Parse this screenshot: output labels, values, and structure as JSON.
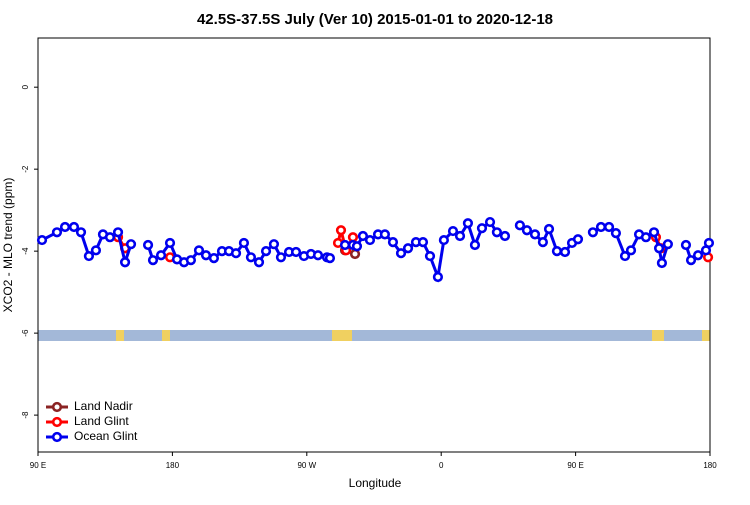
{
  "chart_data": {
    "type": "line",
    "title": "42.5S-37.5S July (Ver 10)   2015-01-01 to 2020-12-18",
    "x_label": "Longitude",
    "y_label": "XCO2 - MLO trend (ppm)",
    "xlim": [
      90,
      540
    ],
    "ylim": [
      -8.9,
      1.2
    ],
    "xticks": [
      {
        "value": 90,
        "label": "90 E"
      },
      {
        "value": 180,
        "label": "180"
      },
      {
        "value": 270,
        "label": "90 W"
      },
      {
        "value": 360,
        "label": "0"
      },
      {
        "value": 450,
        "label": "90 E"
      },
      {
        "value": 540,
        "label": "180"
      }
    ],
    "yticks": [
      0,
      -2,
      -4,
      -6,
      -8
    ],
    "legend": "bottom-left",
    "series": [
      {
        "name": "Land Nadir",
        "color": "#8b2323",
        "x": [
          295.6,
          302.3
        ],
        "values": [
          -3.98,
          -4.07
        ]
      },
      {
        "name": "Land Glint",
        "color": "#ff0000",
        "x": [
          143.6,
          148.3,
          null,
          178.4,
          null,
          290.9,
          292.9,
          296.3,
          300.9,
          null,
          503.8,
          507.2,
          null,
          538.7
        ],
        "values": [
          -3.66,
          -3.93,
          null,
          -4.15,
          null,
          -3.8,
          -3.49,
          -3.98,
          -3.66,
          null,
          -3.66,
          -3.93,
          null,
          -4.15
        ]
      },
      {
        "name": "Ocean Glint",
        "color": "#0000ee",
        "x": [
          92.7,
          102.7,
          108.1,
          114.1,
          118.8,
          124.1,
          128.8,
          133.5,
          138.2,
          143.6,
          148.3,
          152.3,
          null,
          163.7,
          167.0,
          172.4,
          178.4,
          183.1,
          187.8,
          192.4,
          197.8,
          202.5,
          207.8,
          213.2,
          217.9,
          222.6,
          227.9,
          232.6,
          238.0,
          242.7,
          248.0,
          252.7,
          258.1,
          262.8,
          268.1,
          272.8,
          277.5,
          283.5,
          285.5,
          null,
          295.6,
          300.9,
          303.6,
          307.6,
          312.3,
          317.7,
          322.3,
          327.7,
          333.1,
          337.8,
          343.1,
          347.8,
          352.5,
          357.8,
          361.8,
          367.9,
          372.6,
          377.9,
          382.6,
          387.3,
          392.7,
          397.3,
          402.7,
          null,
          412.7,
          417.4,
          422.8,
          428.1,
          432.2,
          437.5,
          442.9,
          447.6,
          451.6,
          null,
          461.6,
          467.0,
          472.4,
          477.0,
          483.1,
          487.1,
          492.5,
          497.1,
          502.5,
          505.9,
          507.8,
          511.8,
          null,
          523.9,
          527.3,
          532.0,
          537.3,
          539.3
        ],
        "values": [
          -3.73,
          -3.54,
          -3.41,
          -3.41,
          -3.54,
          -4.12,
          -3.98,
          -3.59,
          -3.66,
          -3.54,
          -4.27,
          -3.83,
          null,
          -3.85,
          -4.22,
          -4.1,
          -3.8,
          -4.2,
          -4.27,
          -4.22,
          -3.98,
          -4.1,
          -4.17,
          -4.0,
          -4.0,
          -4.05,
          -3.8,
          -4.15,
          -4.27,
          -4.0,
          -3.83,
          -4.15,
          -4.02,
          -4.02,
          -4.12,
          -4.07,
          -4.1,
          -4.15,
          -4.17,
          null,
          -3.85,
          -3.85,
          -3.88,
          -3.63,
          -3.73,
          -3.59,
          -3.59,
          -3.78,
          -4.05,
          -3.93,
          -3.78,
          -3.78,
          -4.12,
          -4.63,
          -3.73,
          -3.51,
          -3.63,
          -3.32,
          -3.85,
          -3.44,
          -3.29,
          -3.54,
          -3.63,
          null,
          -3.37,
          -3.49,
          -3.59,
          -3.78,
          -3.46,
          -4.0,
          -4.02,
          -3.8,
          -3.71,
          null,
          -3.54,
          -3.41,
          -3.41,
          -3.56,
          -4.12,
          -3.98,
          -3.59,
          -3.66,
          -3.54,
          -3.93,
          -4.29,
          -3.83,
          null,
          -3.85,
          -4.22,
          -4.1,
          -3.98,
          -3.8
        ]
      }
    ]
  }
}
